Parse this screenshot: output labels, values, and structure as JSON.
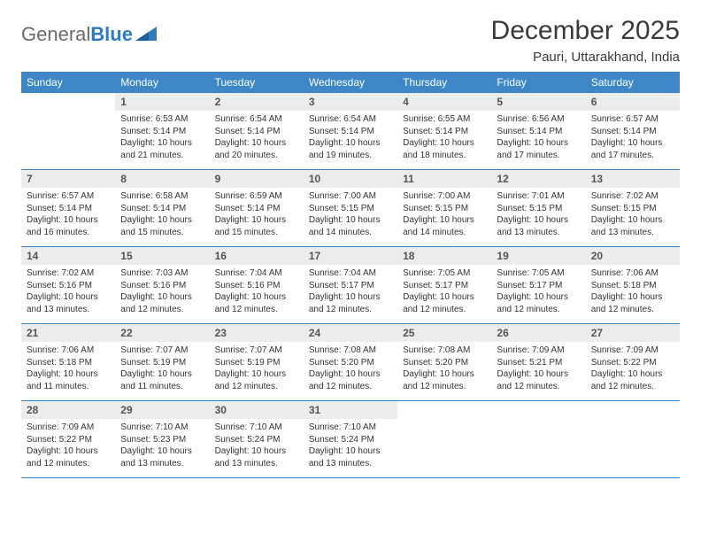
{
  "brand": {
    "part1": "General",
    "part2": "Blue"
  },
  "title": "December 2025",
  "location": "Pauri, Uttarakhand, India",
  "weekday_header_bg": "#3d87c7",
  "weekday_header_fg": "#ffffff",
  "daynum_bg": "#ececec",
  "cell_border_color": "#3d87c7",
  "weekdays": [
    "Sunday",
    "Monday",
    "Tuesday",
    "Wednesday",
    "Thursday",
    "Friday",
    "Saturday"
  ],
  "weeks": [
    [
      {
        "n": "",
        "sr": "",
        "ss": "",
        "dl": ""
      },
      {
        "n": "1",
        "sr": "Sunrise: 6:53 AM",
        "ss": "Sunset: 5:14 PM",
        "dl": "Daylight: 10 hours and 21 minutes."
      },
      {
        "n": "2",
        "sr": "Sunrise: 6:54 AM",
        "ss": "Sunset: 5:14 PM",
        "dl": "Daylight: 10 hours and 20 minutes."
      },
      {
        "n": "3",
        "sr": "Sunrise: 6:54 AM",
        "ss": "Sunset: 5:14 PM",
        "dl": "Daylight: 10 hours and 19 minutes."
      },
      {
        "n": "4",
        "sr": "Sunrise: 6:55 AM",
        "ss": "Sunset: 5:14 PM",
        "dl": "Daylight: 10 hours and 18 minutes."
      },
      {
        "n": "5",
        "sr": "Sunrise: 6:56 AM",
        "ss": "Sunset: 5:14 PM",
        "dl": "Daylight: 10 hours and 17 minutes."
      },
      {
        "n": "6",
        "sr": "Sunrise: 6:57 AM",
        "ss": "Sunset: 5:14 PM",
        "dl": "Daylight: 10 hours and 17 minutes."
      }
    ],
    [
      {
        "n": "7",
        "sr": "Sunrise: 6:57 AM",
        "ss": "Sunset: 5:14 PM",
        "dl": "Daylight: 10 hours and 16 minutes."
      },
      {
        "n": "8",
        "sr": "Sunrise: 6:58 AM",
        "ss": "Sunset: 5:14 PM",
        "dl": "Daylight: 10 hours and 15 minutes."
      },
      {
        "n": "9",
        "sr": "Sunrise: 6:59 AM",
        "ss": "Sunset: 5:14 PM",
        "dl": "Daylight: 10 hours and 15 minutes."
      },
      {
        "n": "10",
        "sr": "Sunrise: 7:00 AM",
        "ss": "Sunset: 5:15 PM",
        "dl": "Daylight: 10 hours and 14 minutes."
      },
      {
        "n": "11",
        "sr": "Sunrise: 7:00 AM",
        "ss": "Sunset: 5:15 PM",
        "dl": "Daylight: 10 hours and 14 minutes."
      },
      {
        "n": "12",
        "sr": "Sunrise: 7:01 AM",
        "ss": "Sunset: 5:15 PM",
        "dl": "Daylight: 10 hours and 13 minutes."
      },
      {
        "n": "13",
        "sr": "Sunrise: 7:02 AM",
        "ss": "Sunset: 5:15 PM",
        "dl": "Daylight: 10 hours and 13 minutes."
      }
    ],
    [
      {
        "n": "14",
        "sr": "Sunrise: 7:02 AM",
        "ss": "Sunset: 5:16 PM",
        "dl": "Daylight: 10 hours and 13 minutes."
      },
      {
        "n": "15",
        "sr": "Sunrise: 7:03 AM",
        "ss": "Sunset: 5:16 PM",
        "dl": "Daylight: 10 hours and 12 minutes."
      },
      {
        "n": "16",
        "sr": "Sunrise: 7:04 AM",
        "ss": "Sunset: 5:16 PM",
        "dl": "Daylight: 10 hours and 12 minutes."
      },
      {
        "n": "17",
        "sr": "Sunrise: 7:04 AM",
        "ss": "Sunset: 5:17 PM",
        "dl": "Daylight: 10 hours and 12 minutes."
      },
      {
        "n": "18",
        "sr": "Sunrise: 7:05 AM",
        "ss": "Sunset: 5:17 PM",
        "dl": "Daylight: 10 hours and 12 minutes."
      },
      {
        "n": "19",
        "sr": "Sunrise: 7:05 AM",
        "ss": "Sunset: 5:17 PM",
        "dl": "Daylight: 10 hours and 12 minutes."
      },
      {
        "n": "20",
        "sr": "Sunrise: 7:06 AM",
        "ss": "Sunset: 5:18 PM",
        "dl": "Daylight: 10 hours and 12 minutes."
      }
    ],
    [
      {
        "n": "21",
        "sr": "Sunrise: 7:06 AM",
        "ss": "Sunset: 5:18 PM",
        "dl": "Daylight: 10 hours and 11 minutes."
      },
      {
        "n": "22",
        "sr": "Sunrise: 7:07 AM",
        "ss": "Sunset: 5:19 PM",
        "dl": "Daylight: 10 hours and 11 minutes."
      },
      {
        "n": "23",
        "sr": "Sunrise: 7:07 AM",
        "ss": "Sunset: 5:19 PM",
        "dl": "Daylight: 10 hours and 12 minutes."
      },
      {
        "n": "24",
        "sr": "Sunrise: 7:08 AM",
        "ss": "Sunset: 5:20 PM",
        "dl": "Daylight: 10 hours and 12 minutes."
      },
      {
        "n": "25",
        "sr": "Sunrise: 7:08 AM",
        "ss": "Sunset: 5:20 PM",
        "dl": "Daylight: 10 hours and 12 minutes."
      },
      {
        "n": "26",
        "sr": "Sunrise: 7:09 AM",
        "ss": "Sunset: 5:21 PM",
        "dl": "Daylight: 10 hours and 12 minutes."
      },
      {
        "n": "27",
        "sr": "Sunrise: 7:09 AM",
        "ss": "Sunset: 5:22 PM",
        "dl": "Daylight: 10 hours and 12 minutes."
      }
    ],
    [
      {
        "n": "28",
        "sr": "Sunrise: 7:09 AM",
        "ss": "Sunset: 5:22 PM",
        "dl": "Daylight: 10 hours and 12 minutes."
      },
      {
        "n": "29",
        "sr": "Sunrise: 7:10 AM",
        "ss": "Sunset: 5:23 PM",
        "dl": "Daylight: 10 hours and 13 minutes."
      },
      {
        "n": "30",
        "sr": "Sunrise: 7:10 AM",
        "ss": "Sunset: 5:24 PM",
        "dl": "Daylight: 10 hours and 13 minutes."
      },
      {
        "n": "31",
        "sr": "Sunrise: 7:10 AM",
        "ss": "Sunset: 5:24 PM",
        "dl": "Daylight: 10 hours and 13 minutes."
      },
      {
        "n": "",
        "sr": "",
        "ss": "",
        "dl": ""
      },
      {
        "n": "",
        "sr": "",
        "ss": "",
        "dl": ""
      },
      {
        "n": "",
        "sr": "",
        "ss": "",
        "dl": ""
      }
    ]
  ]
}
